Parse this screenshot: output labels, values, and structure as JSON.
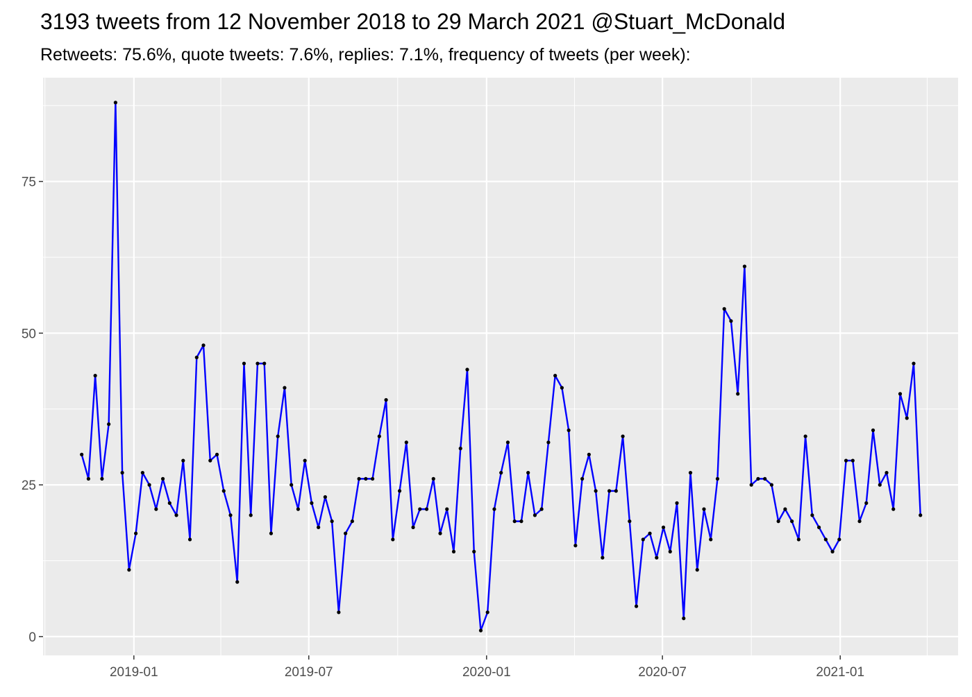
{
  "chart_data": {
    "type": "line",
    "title": "3193 tweets from 12 November 2018 to 29 March 2021 @Stuart_McDonald",
    "subtitle": "Retweets: 75.6%, quote tweets: 7.6%, replies: 7.1%, frequency of tweets (per week):",
    "xlabel": "",
    "ylabel": "",
    "x_tick_labels": [
      "2019-01",
      "2019-07",
      "2020-01",
      "2020-07",
      "2021-01"
    ],
    "x_ticks": [
      "2019-01-01",
      "2019-07-01",
      "2020-01-01",
      "2020-07-01",
      "2021-01-01"
    ],
    "x_minor_ticks": [
      "2018-10-01",
      "2019-04-01",
      "2019-10-01",
      "2020-04-01",
      "2020-10-01",
      "2021-04-01"
    ],
    "y_ticks": [
      0,
      25,
      50,
      75
    ],
    "y_tick_labels": [
      "0",
      "25",
      "50",
      "75"
    ],
    "y_minor_ticks": [
      12.5,
      37.5,
      62.5,
      87.5
    ],
    "xlim": [
      "2018-09-29",
      "2021-05-03"
    ],
    "ylim": [
      -3.1,
      92.1
    ],
    "grid": true,
    "line_color": "#0000ff",
    "point_color": "#000000",
    "panel_color": "#ebebeb",
    "x": [
      "2018-11-08",
      "2018-11-15",
      "2018-11-22",
      "2018-11-29",
      "2018-12-06",
      "2018-12-13",
      "2018-12-20",
      "2018-12-27",
      "2019-01-03",
      "2019-01-10",
      "2019-01-17",
      "2019-01-24",
      "2019-01-31",
      "2019-02-07",
      "2019-02-14",
      "2019-02-21",
      "2019-02-28",
      "2019-03-07",
      "2019-03-14",
      "2019-03-21",
      "2019-03-28",
      "2019-04-04",
      "2019-04-11",
      "2019-04-18",
      "2019-04-25",
      "2019-05-02",
      "2019-05-09",
      "2019-05-16",
      "2019-05-23",
      "2019-05-30",
      "2019-06-06",
      "2019-06-13",
      "2019-06-20",
      "2019-06-27",
      "2019-07-04",
      "2019-07-11",
      "2019-07-18",
      "2019-07-25",
      "2019-08-01",
      "2019-08-08",
      "2019-08-15",
      "2019-08-22",
      "2019-08-29",
      "2019-09-05",
      "2019-09-12",
      "2019-09-19",
      "2019-09-26",
      "2019-10-03",
      "2019-10-10",
      "2019-10-17",
      "2019-10-24",
      "2019-10-31",
      "2019-11-07",
      "2019-11-14",
      "2019-11-21",
      "2019-11-28",
      "2019-12-05",
      "2019-12-12",
      "2019-12-19",
      "2019-12-26",
      "2020-01-02",
      "2020-01-09",
      "2020-01-16",
      "2020-01-23",
      "2020-01-30",
      "2020-02-06",
      "2020-02-13",
      "2020-02-20",
      "2020-02-27",
      "2020-03-05",
      "2020-03-12",
      "2020-03-19",
      "2020-03-26",
      "2020-04-02",
      "2020-04-09",
      "2020-04-16",
      "2020-04-23",
      "2020-04-30",
      "2020-05-07",
      "2020-05-14",
      "2020-05-21",
      "2020-05-28",
      "2020-06-04",
      "2020-06-11",
      "2020-06-18",
      "2020-06-25",
      "2020-07-02",
      "2020-07-09",
      "2020-07-16",
      "2020-07-23",
      "2020-07-30",
      "2020-08-06",
      "2020-08-13",
      "2020-08-20",
      "2020-08-27",
      "2020-09-03",
      "2020-09-10",
      "2020-09-17",
      "2020-09-24",
      "2020-10-01",
      "2020-10-08",
      "2020-10-15",
      "2020-10-22",
      "2020-10-29",
      "2020-11-05",
      "2020-11-12",
      "2020-11-19",
      "2020-11-26",
      "2020-12-03",
      "2020-12-10",
      "2020-12-17",
      "2020-12-24",
      "2020-12-31",
      "2021-01-07",
      "2021-01-14",
      "2021-01-21",
      "2021-01-28",
      "2021-02-04",
      "2021-02-11",
      "2021-02-18",
      "2021-02-25",
      "2021-03-04",
      "2021-03-11",
      "2021-03-18",
      "2021-03-25"
    ],
    "y": [
      30,
      26,
      43,
      26,
      35,
      88,
      27,
      11,
      17,
      27,
      25,
      21,
      26,
      22,
      20,
      29,
      16,
      46,
      48,
      29,
      30,
      24,
      20,
      9,
      45,
      20,
      45,
      45,
      17,
      33,
      41,
      25,
      21,
      29,
      22,
      18,
      23,
      19,
      4,
      17,
      19,
      26,
      26,
      26,
      33,
      39,
      16,
      24,
      32,
      18,
      21,
      21,
      26,
      17,
      21,
      14,
      31,
      44,
      14,
      1,
      4,
      21,
      27,
      32,
      19,
      19,
      27,
      20,
      21,
      32,
      43,
      41,
      34,
      15,
      26,
      30,
      24,
      13,
      24,
      24,
      33,
      19,
      5,
      16,
      17,
      13,
      18,
      14,
      22,
      3,
      27,
      11,
      21,
      16,
      26,
      54,
      52,
      40,
      61,
      25,
      26,
      26,
      25,
      19,
      21,
      19,
      16,
      33,
      20,
      18,
      16,
      14,
      16,
      29,
      29,
      19,
      22,
      34,
      25,
      27,
      21,
      40,
      36,
      45,
      20
    ]
  }
}
